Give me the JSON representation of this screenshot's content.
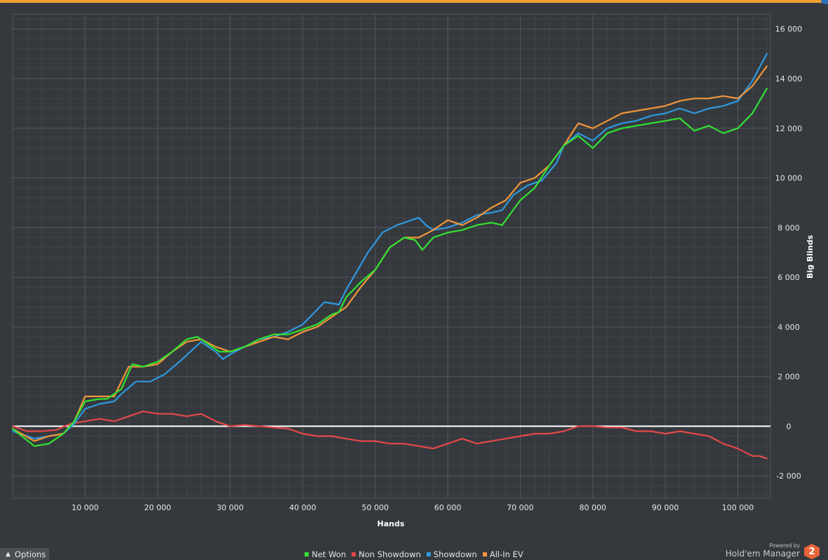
{
  "chart_data": {
    "type": "line",
    "xlabel": "Hands",
    "ylabel": "Big Blinds",
    "xlim": [
      0,
      104500
    ],
    "ylim": [
      -2900,
      16600
    ],
    "x_ticks": [
      10000,
      20000,
      30000,
      40000,
      50000,
      60000,
      70000,
      80000,
      90000,
      100000
    ],
    "x_tick_labels": [
      "10 000",
      "20 000",
      "30 000",
      "40 000",
      "50 000",
      "60 000",
      "70 000",
      "80 000",
      "90 000",
      "100 000"
    ],
    "y_ticks": [
      -2000,
      0,
      2000,
      4000,
      6000,
      8000,
      10000,
      12000,
      14000,
      16000
    ],
    "y_tick_labels": [
      "-2 000",
      "0",
      "2 000",
      "4 000",
      "6 000",
      "8 000",
      "10 000",
      "12 000",
      "14 000",
      "16 000"
    ],
    "grid": true,
    "legend_position": "bottom",
    "zero_line": true,
    "series": [
      {
        "name": "Net Won",
        "color": "#33e233",
        "x": [
          0,
          3000,
          5000,
          7000,
          8500,
          10000,
          12000,
          13000,
          15000,
          16500,
          18000,
          20000,
          22000,
          24000,
          25500,
          27000,
          28500,
          30000,
          32000,
          34000,
          36000,
          38000,
          40000,
          42000,
          44000,
          45000,
          46000,
          48000,
          50000,
          52000,
          54000,
          55500,
          56500,
          58000,
          60000,
          62000,
          64000,
          66000,
          67500,
          69000,
          70000,
          72000,
          74000,
          76000,
          78000,
          80000,
          82000,
          84000,
          86000,
          88000,
          90000,
          92000,
          94000,
          96000,
          98000,
          100000,
          102000,
          104000
        ],
        "y": [
          -100,
          -800,
          -700,
          -300,
          200,
          1000,
          1100,
          1100,
          1500,
          2500,
          2400,
          2600,
          3000,
          3500,
          3600,
          3300,
          3000,
          3000,
          3200,
          3500,
          3700,
          3700,
          3900,
          4100,
          4500,
          4600,
          5200,
          5800,
          6300,
          7200,
          7600,
          7500,
          7100,
          7600,
          7800,
          7900,
          8100,
          8200,
          8100,
          8700,
          9100,
          9600,
          10500,
          11300,
          11700,
          11200,
          11800,
          12000,
          12100,
          12200,
          12300,
          12400,
          11900,
          12100,
          11800,
          12000,
          12600,
          13600
        ]
      },
      {
        "name": "Non Showdown",
        "color": "#e54848",
        "x": [
          0,
          2000,
          4000,
          6000,
          8000,
          10000,
          12000,
          14000,
          16000,
          18000,
          20000,
          22000,
          24000,
          26000,
          28000,
          30000,
          32000,
          34000,
          36000,
          38000,
          40000,
          42000,
          44000,
          46000,
          48000,
          50000,
          52000,
          54000,
          56000,
          58000,
          60000,
          62000,
          64000,
          66000,
          68000,
          70000,
          72000,
          74000,
          76000,
          78000,
          80000,
          82000,
          84000,
          86000,
          88000,
          90000,
          92000,
          94000,
          96000,
          98000,
          100000,
          102000,
          103000,
          104000
        ],
        "y": [
          0,
          -200,
          -200,
          -150,
          100,
          200,
          300,
          200,
          400,
          600,
          500,
          500,
          400,
          500,
          200,
          0,
          50,
          0,
          -50,
          -100,
          -300,
          -400,
          -400,
          -500,
          -600,
          -600,
          -700,
          -700,
          -800,
          -900,
          -700,
          -500,
          -700,
          -600,
          -500,
          -400,
          -300,
          -300,
          -200,
          0,
          0,
          -50,
          -50,
          -200,
          -200,
          -300,
          -200,
          -300,
          -400,
          -700,
          -900,
          -1200,
          -1200,
          -1300
        ]
      },
      {
        "name": "Showdown",
        "color": "#2f98e0",
        "x": [
          0,
          3000,
          5000,
          7000,
          8500,
          10000,
          12000,
          14000,
          15000,
          17000,
          19000,
          21000,
          23000,
          24500,
          26000,
          28000,
          29000,
          30000,
          32000,
          34000,
          36000,
          38000,
          40000,
          42000,
          43000,
          45000,
          46000,
          48000,
          49000,
          51000,
          53000,
          55000,
          56000,
          57000,
          58000,
          60000,
          62000,
          64000,
          66000,
          67500,
          69000,
          71000,
          73000,
          75000,
          76000,
          78000,
          80000,
          82000,
          84000,
          86000,
          88000,
          90000,
          92000,
          94000,
          96000,
          98000,
          100000,
          102000,
          104000
        ],
        "y": [
          -200,
          -500,
          -400,
          -300,
          100,
          700,
          900,
          1000,
          1300,
          1800,
          1800,
          2100,
          2600,
          3000,
          3400,
          3000,
          2700,
          2900,
          3200,
          3500,
          3600,
          3800,
          4100,
          4700,
          5000,
          4900,
          5500,
          6500,
          7000,
          7800,
          8100,
          8300,
          8400,
          8100,
          7900,
          8000,
          8200,
          8500,
          8600,
          8700,
          9300,
          9700,
          9900,
          10600,
          11300,
          11800,
          11500,
          12000,
          12200,
          12300,
          12500,
          12600,
          12800,
          12600,
          12800,
          12900,
          13100,
          13900,
          15000
        ]
      },
      {
        "name": "All-In EV",
        "color": "#f0963a",
        "x": [
          0,
          3000,
          5000,
          7000,
          8500,
          10000,
          12000,
          14000,
          16000,
          18000,
          20000,
          22000,
          24000,
          26000,
          28000,
          30000,
          32000,
          34000,
          36000,
          38000,
          40000,
          42000,
          44000,
          46000,
          48000,
          50000,
          52000,
          54000,
          56000,
          58000,
          60000,
          62000,
          64000,
          66000,
          68000,
          70000,
          72000,
          74000,
          76000,
          78000,
          80000,
          82000,
          84000,
          86000,
          88000,
          90000,
          92000,
          94000,
          96000,
          98000,
          100000,
          102000,
          104000
        ],
        "y": [
          -100,
          -600,
          -400,
          -300,
          200,
          1200,
          1200,
          1200,
          2400,
          2400,
          2500,
          3000,
          3400,
          3500,
          3200,
          3000,
          3200,
          3400,
          3600,
          3500,
          3800,
          4000,
          4400,
          4800,
          5600,
          6300,
          7200,
          7600,
          7600,
          7900,
          8300,
          8100,
          8400,
          8800,
          9100,
          9800,
          10000,
          10500,
          11300,
          12200,
          12000,
          12300,
          12600,
          12700,
          12800,
          12900,
          13100,
          13200,
          13200,
          13300,
          13200,
          13700,
          14500
        ]
      }
    ]
  },
  "footer": {
    "options_label": "Options",
    "powered_by": "Powered by",
    "brand_name": "Hold'em Manager",
    "brand_logo_text": "2"
  },
  "colors": {
    "background": "#35393d",
    "top_bar": "#f0a030",
    "grid_major": "#54585d",
    "grid_minor": "#404449",
    "zero_line": "#ffffff"
  }
}
